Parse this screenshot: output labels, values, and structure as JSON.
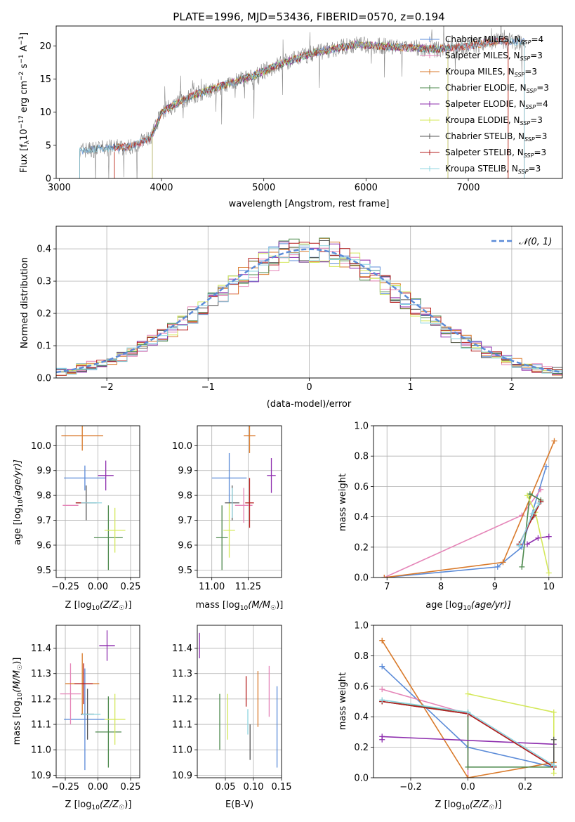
{
  "colors": {
    "Chabrier MILES": "#5b8bd8",
    "Salpeter MILES": "#e585b8",
    "Kroupa MILES": "#d97a2b",
    "Chabrier ELODIE": "#4e8a4e",
    "Salpeter ELODIE": "#8e2fae",
    "Kroupa ELODIE": "#d4e85a",
    "Chabrier STELIB": "#555555",
    "Salpeter STELIB": "#b51f1f",
    "Kroupa STELIB": "#8fd5e0",
    "gaussian": "#5b8bd8",
    "grid": "#b0b0b0"
  },
  "chart_data": [
    {
      "type": "line",
      "title": "PLATE=1996, MJD=53436, FIBERID=0570, z=0.194",
      "xlabel": "wavelength [Angstrom, rest frame]",
      "ylabel_main": "Flux [f",
      "ylabel_sub1": "λ",
      "ylabel_mid": "10",
      "ylabel_sup1": "−17",
      "ylabel_rest": " erg cm",
      "ylabel_sup2": "−2",
      "ylabel_s": " s",
      "ylabel_sup3": "−1",
      "ylabel_end": " A",
      "ylabel_sup4": "−1",
      "ylabel_close": "]",
      "xlim": [
        2970,
        7920
      ],
      "ylim": [
        0,
        23
      ],
      "xticks": [
        3000,
        4000,
        5000,
        6000,
        7000
      ],
      "yticks": [
        0,
        5,
        10,
        15,
        20
      ],
      "grid": false,
      "legend_position": "right",
      "series": [
        {
          "name": "Chabrier MILES",
          "nssp": "4",
          "x_start": 3200,
          "x_end": 7550
        },
        {
          "name": "Salpeter MILES",
          "nssp": "3",
          "x_start": 3540,
          "x_end": 7390
        },
        {
          "name": "Kroupa MILES",
          "nssp": "3",
          "x_start": 3540,
          "x_end": 7390
        },
        {
          "name": "Chabrier ELODIE",
          "nssp": "3",
          "x_start": 3910,
          "x_end": 6800
        },
        {
          "name": "Salpeter ELODIE",
          "nssp": "4",
          "x_start": 3910,
          "x_end": 6800
        },
        {
          "name": "Kroupa ELODIE",
          "nssp": "3",
          "x_start": 3910,
          "x_end": 6800
        },
        {
          "name": "Chabrier STELIB",
          "nssp": "3",
          "x_start": 3200,
          "x_end": 7550
        },
        {
          "name": "Salpeter STELIB",
          "nssp": "3",
          "x_start": 3540,
          "x_end": 7390
        },
        {
          "name": "Kroupa STELIB",
          "nssp": "3",
          "x_start": 3200,
          "x_end": 7550
        }
      ],
      "continuum": {
        "x": [
          3200,
          3400,
          3700,
          3900,
          4000,
          4300,
          4600,
          4900,
          5200,
          5500,
          5900,
          6300,
          6700,
          7000,
          7300,
          7600
        ],
        "y": [
          4.2,
          4.5,
          4.8,
          6.2,
          10.0,
          12.5,
          14.0,
          15.5,
          17.5,
          19.0,
          20.2,
          19.8,
          19.5,
          20.0,
          20.8,
          20.5
        ]
      }
    },
    {
      "type": "step",
      "xlabel": "(data-model)/error",
      "ylabel": "Normed distribution",
      "xlim": [
        -2.5,
        2.5
      ],
      "ylim": [
        0,
        0.47
      ],
      "xticks": [
        -2,
        -1,
        0,
        1,
        2
      ],
      "yticks": [
        0.0,
        0.1,
        0.2,
        0.3,
        0.4
      ],
      "xtick_labels": [
        "−2",
        "−1",
        "0",
        "1",
        "2"
      ],
      "ytick_labels": [
        "0.0",
        "0.1",
        "0.2",
        "0.3",
        "0.4"
      ],
      "grid": true,
      "legend_position": "top-right",
      "legend_label": "𝒩(0, 1)",
      "bin_width": 0.1,
      "series_base": [
        0.021,
        0.025,
        0.03,
        0.037,
        0.045,
        0.055,
        0.067,
        0.081,
        0.096,
        0.112,
        0.13,
        0.15,
        0.172,
        0.194,
        0.218,
        0.242,
        0.266,
        0.29,
        0.313,
        0.335,
        0.354,
        0.37,
        0.384,
        0.393,
        0.397,
        0.397,
        0.393,
        0.384,
        0.37,
        0.354,
        0.335,
        0.313,
        0.29,
        0.266,
        0.242,
        0.218,
        0.194,
        0.172,
        0.15,
        0.13,
        0.112,
        0.096,
        0.081,
        0.067,
        0.055,
        0.045,
        0.037,
        0.03,
        0.025,
        0.021
      ]
    },
    {
      "type": "errorbar",
      "xlabel": "Z [log",
      "xlabel_sub": "10",
      "xlabel_rest": "(Z/Z",
      "xlabel_sun": "☉",
      "xlabel_end": ")]",
      "ylabel": "age  [log",
      "ylabel_sub": "10",
      "ylabel_rest": "(age/yr)]",
      "xlim": [
        -0.32,
        0.32
      ],
      "ylim": [
        9.47,
        10.08
      ],
      "xticks": [
        -0.25,
        0.0,
        0.25
      ],
      "xtick_labels": [
        "−0.25",
        "0.00",
        "0.25"
      ],
      "yticks": [
        9.5,
        9.6,
        9.7,
        9.8,
        9.9,
        10.0
      ],
      "ytick_labels": [
        "9.5",
        "9.6",
        "9.7",
        "9.8",
        "9.9",
        "10.0"
      ],
      "grid": true,
      "points": [
        {
          "name": "Chabrier MILES",
          "x": -0.1,
          "xerr": 0.16,
          "y": 9.87,
          "yerr": 0.05
        },
        {
          "name": "Salpeter MILES",
          "x": -0.21,
          "xerr": 0.06,
          "y": 9.76,
          "yerr": 0.0
        },
        {
          "name": "Kroupa MILES",
          "x": -0.12,
          "xerr": 0.16,
          "y": 10.04,
          "yerr": 0.06
        },
        {
          "name": "Chabrier ELODIE",
          "x": 0.08,
          "xerr": 0.11,
          "y": 9.63,
          "yerr": 0.13
        },
        {
          "name": "Salpeter ELODIE",
          "x": 0.06,
          "xerr": 0.06,
          "y": 9.88,
          "yerr": 0.06
        },
        {
          "name": "Kroupa ELODIE",
          "x": 0.13,
          "xerr": 0.08,
          "y": 9.66,
          "yerr": 0.09
        },
        {
          "name": "Chabrier STELIB",
          "x": -0.09,
          "xerr": 0.08,
          "y": 9.77,
          "yerr": 0.07
        },
        {
          "name": "Salpeter STELIB",
          "x": -0.12,
          "xerr": 0.05,
          "y": 9.77,
          "yerr": 0.0
        },
        {
          "name": "Kroupa STELIB",
          "x": -0.05,
          "xerr": 0.08,
          "y": 9.77,
          "yerr": 0.0
        }
      ]
    },
    {
      "type": "errorbar",
      "xlabel": "mass [log",
      "xlabel_sub": "10",
      "xlabel_rest": "(M/M",
      "xlabel_sun": "☉",
      "xlabel_end": ")]",
      "xlim": [
        10.9,
        11.48
      ],
      "ylim": [
        9.47,
        10.08
      ],
      "xticks": [
        11.0,
        11.25
      ],
      "xtick_labels": [
        "11.00",
        "11.25"
      ],
      "yticks": [
        9.5,
        9.6,
        9.7,
        9.8,
        9.9,
        10.0
      ],
      "ytick_labels": [
        "9.5",
        "9.6",
        "9.7",
        "9.8",
        "9.9",
        "10.0"
      ],
      "grid": true,
      "points": [
        {
          "name": "Chabrier MILES",
          "x": 11.12,
          "xerr": 0.12,
          "y": 9.87,
          "yerr": 0.1
        },
        {
          "name": "Salpeter MILES",
          "x": 11.22,
          "xerr": 0.06,
          "y": 9.76,
          "yerr": 0.07
        },
        {
          "name": "Kroupa MILES",
          "x": 11.26,
          "xerr": 0.04,
          "y": 10.04,
          "yerr": 0.07
        },
        {
          "name": "Chabrier ELODIE",
          "x": 11.07,
          "xerr": 0.04,
          "y": 9.63,
          "yerr": 0.13
        },
        {
          "name": "Salpeter ELODIE",
          "x": 11.41,
          "xerr": 0.03,
          "y": 9.88,
          "yerr": 0.07
        },
        {
          "name": "Kroupa ELODIE",
          "x": 11.12,
          "xerr": 0.04,
          "y": 9.66,
          "yerr": 0.11
        },
        {
          "name": "Chabrier STELIB",
          "x": 11.14,
          "xerr": 0.05,
          "y": 9.77,
          "yerr": 0.07
        },
        {
          "name": "Salpeter STELIB",
          "x": 11.26,
          "xerr": 0.03,
          "y": 9.77,
          "yerr": 0.1
        },
        {
          "name": "Kroupa STELIB",
          "x": 11.14,
          "xerr": 0.0,
          "y": 9.77,
          "yerr": 0.06
        }
      ]
    },
    {
      "type": "line",
      "xlabel": "age  [log",
      "xlabel_sub": "10",
      "xlabel_rest": "(age/yr)]",
      "ylabel": "mass weight",
      "xlim": [
        6.75,
        10.25
      ],
      "ylim": [
        0,
        1.0
      ],
      "xticks": [
        7,
        8,
        9,
        10
      ],
      "xtick_labels": [
        "7",
        "8",
        "9",
        "10"
      ],
      "yticks": [
        0.0,
        0.2,
        0.4,
        0.6,
        0.8,
        1.0
      ],
      "ytick_labels": [
        "0.0",
        "0.2",
        "0.4",
        "0.6",
        "0.8",
        "1.0"
      ],
      "grid": true,
      "series": [
        {
          "name": "Chabrier MILES",
          "x": [
            6.95,
            9.05,
            9.5,
            9.95
          ],
          "y": [
            0.0,
            0.07,
            0.2,
            0.73
          ]
        },
        {
          "name": "Salpeter MILES",
          "x": [
            6.95,
            9.5,
            9.85
          ],
          "y": [
            0.0,
            0.41,
            0.58
          ]
        },
        {
          "name": "Kroupa MILES",
          "x": [
            6.95,
            9.15,
            10.1
          ],
          "y": [
            0.0,
            0.1,
            0.9
          ]
        },
        {
          "name": "Chabrier ELODIE",
          "x": [
            9.5,
            9.65,
            9.85
          ],
          "y": [
            0.07,
            0.55,
            0.51
          ]
        },
        {
          "name": "Salpeter ELODIE",
          "x": [
            9.6,
            9.8,
            10.0
          ],
          "y": [
            0.22,
            0.26,
            0.27
          ]
        },
        {
          "name": "Kroupa ELODIE",
          "x": [
            9.6,
            9.75,
            10.0
          ],
          "y": [
            0.54,
            0.43,
            0.03
          ]
        },
        {
          "name": "Chabrier STELIB",
          "x": [
            9.45,
            9.7,
            9.85
          ],
          "y": [
            0.22,
            0.4,
            0.5
          ]
        },
        {
          "name": "Salpeter STELIB",
          "x": [
            9.45,
            9.72,
            9.85
          ],
          "y": [
            0.22,
            0.41,
            0.5
          ]
        },
        {
          "name": "Kroupa STELIB",
          "x": [
            9.45,
            9.7,
            9.82
          ],
          "y": [
            0.21,
            0.42,
            0.49
          ]
        }
      ]
    },
    {
      "type": "errorbar",
      "xlabel": "Z [log",
      "xlabel_sub": "10",
      "xlabel_rest": "(Z/Z",
      "xlabel_sun": "☉",
      "xlabel_end": ")]",
      "ylabel": "mass [log",
      "ylabel_sub": "10",
      "ylabel_rest": "(M/M",
      "ylabel_sun": "☉",
      "ylabel_end": ")]",
      "xlim": [
        -0.32,
        0.32
      ],
      "ylim": [
        10.89,
        11.49
      ],
      "xticks": [
        -0.25,
        0.0,
        0.25
      ],
      "xtick_labels": [
        "−0.25",
        "0.00",
        "0.25"
      ],
      "yticks": [
        10.9,
        11.0,
        11.1,
        11.2,
        11.3,
        11.4
      ],
      "ytick_labels": [
        "10.9",
        "11.0",
        "11.1",
        "11.2",
        "11.3",
        "11.4"
      ],
      "grid": true,
      "points": [
        {
          "name": "Chabrier MILES",
          "x": -0.1,
          "xerr": 0.16,
          "y": 11.12,
          "yerr": 0.2
        },
        {
          "name": "Salpeter MILES",
          "x": -0.21,
          "xerr": 0.08,
          "y": 11.22,
          "yerr": 0.12
        },
        {
          "name": "Kroupa MILES",
          "x": -0.12,
          "xerr": 0.13,
          "y": 11.26,
          "yerr": 0.12
        },
        {
          "name": "Chabrier ELODIE",
          "x": 0.08,
          "xerr": 0.1,
          "y": 11.07,
          "yerr": 0.14
        },
        {
          "name": "Salpeter ELODIE",
          "x": 0.07,
          "xerr": 0.06,
          "y": 11.41,
          "yerr": 0.06
        },
        {
          "name": "Kroupa ELODIE",
          "x": 0.13,
          "xerr": 0.08,
          "y": 11.12,
          "yerr": 0.1
        },
        {
          "name": "Chabrier STELIB",
          "x": -0.08,
          "xerr": 0.05,
          "y": 11.14,
          "yerr": 0.1
        },
        {
          "name": "Salpeter STELIB",
          "x": -0.11,
          "xerr": 0.07,
          "y": 11.26,
          "yerr": 0.08
        },
        {
          "name": "Kroupa STELIB",
          "x": -0.05,
          "xerr": 0.07,
          "y": 11.14,
          "yerr": 0.0
        }
      ]
    },
    {
      "type": "errorbar",
      "xlabel": "E(B-V)",
      "xlim": [
        0.0,
        0.15
      ],
      "ylim": [
        10.89,
        11.49
      ],
      "xticks": [
        0.05,
        0.1,
        0.15
      ],
      "xtick_labels": [
        "0.05",
        "0.10",
        "0.15"
      ],
      "yticks": [
        10.9,
        11.0,
        11.1,
        11.2,
        11.3,
        11.4
      ],
      "ytick_labels": [
        "10.9",
        "11.0",
        "11.1",
        "11.2",
        "11.3",
        "11.4"
      ],
      "grid": true,
      "points": [
        {
          "name": "Chabrier MILES",
          "x": 0.142,
          "xerr": 0,
          "y": 11.09,
          "yerr": 0.16
        },
        {
          "name": "Salpeter MILES",
          "x": 0.128,
          "xerr": 0,
          "y": 11.23,
          "yerr": 0.1
        },
        {
          "name": "Kroupa MILES",
          "x": 0.108,
          "xerr": 0,
          "y": 11.2,
          "yerr": 0.11
        },
        {
          "name": "Chabrier ELODIE",
          "x": 0.04,
          "xerr": 0,
          "y": 11.11,
          "yerr": 0.11
        },
        {
          "name": "Salpeter ELODIE",
          "x": 0.004,
          "xerr": 0,
          "y": 11.41,
          "yerr": 0.05
        },
        {
          "name": "Kroupa ELODIE",
          "x": 0.054,
          "xerr": 0,
          "y": 11.13,
          "yerr": 0.09
        },
        {
          "name": "Chabrier STELIB",
          "x": 0.094,
          "xerr": 0,
          "y": 11.03,
          "yerr": 0.07
        },
        {
          "name": "Salpeter STELIB",
          "x": 0.087,
          "xerr": 0,
          "y": 11.23,
          "yerr": 0.06
        },
        {
          "name": "Kroupa STELIB",
          "x": 0.09,
          "xerr": 0,
          "y": 11.11,
          "yerr": 0.05
        }
      ]
    },
    {
      "type": "line",
      "xlabel": "Z [log",
      "xlabel_sub": "10",
      "xlabel_rest": "(Z/Z",
      "xlabel_sun": "☉",
      "xlabel_end": ")]",
      "ylabel": "mass weight",
      "xlim": [
        -0.33,
        0.33
      ],
      "ylim": [
        0,
        1.0
      ],
      "xticks": [
        -0.2,
        0.0,
        0.2
      ],
      "xtick_labels": [
        "−0.2",
        "0.0",
        "0.2"
      ],
      "yticks": [
        0.0,
        0.2,
        0.4,
        0.6,
        0.8,
        1.0
      ],
      "ytick_labels": [
        "0.0",
        "0.2",
        "0.4",
        "0.6",
        "0.8",
        "1.0"
      ],
      "grid": true,
      "series": [
        {
          "name": "Chabrier MILES",
          "x": [
            -0.3,
            0.0,
            0.3
          ],
          "y": [
            0.73,
            0.2,
            0.07
          ]
        },
        {
          "name": "Salpeter MILES",
          "x": [
            -0.3,
            0.0,
            0.0
          ],
          "y": [
            0.58,
            0.42,
            0.0
          ]
        },
        {
          "name": "Kroupa MILES",
          "x": [
            -0.3,
            0.0,
            0.3
          ],
          "y": [
            0.9,
            0.0,
            0.1
          ]
        },
        {
          "name": "Chabrier ELODIE",
          "x": [
            -0.3,
            0.0,
            0.0,
            0.3
          ],
          "y": [
            0.5,
            0.43,
            0.07,
            0.07
          ]
        },
        {
          "name": "Salpeter ELODIE",
          "x": [
            -0.3,
            -0.3,
            0.3
          ],
          "y": [
            0.25,
            0.27,
            0.22
          ]
        },
        {
          "name": "Kroupa ELODIE",
          "x": [
            0.0,
            0.3,
            0.3
          ],
          "y": [
            0.55,
            0.43,
            0.03
          ]
        },
        {
          "name": "Chabrier STELIB",
          "x": [
            -0.3,
            0.0,
            0.3,
            0.3
          ],
          "y": [
            0.5,
            0.42,
            0.07,
            0.25
          ]
        },
        {
          "name": "Salpeter STELIB",
          "x": [
            -0.3,
            0.0,
            0.3
          ],
          "y": [
            0.5,
            0.42,
            0.07
          ]
        },
        {
          "name": "Kroupa STELIB",
          "x": [
            -0.3,
            0.0,
            0.3
          ],
          "y": [
            0.51,
            0.43,
            0.08
          ]
        }
      ]
    }
  ]
}
